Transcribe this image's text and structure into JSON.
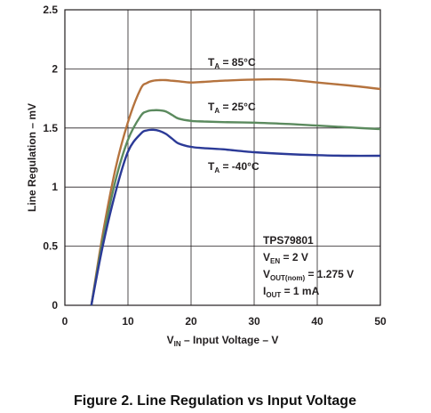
{
  "chart_data": {
    "type": "line",
    "caption": "Figure 2. Line Regulation vs Input Voltage",
    "xlabel": {
      "main": "V",
      "sub": "IN",
      "rest": " – Input Voltage – V"
    },
    "ylabel": "Line Regulation – mV",
    "xlim": [
      0,
      50
    ],
    "ylim": [
      0,
      2.5
    ],
    "xticks": [
      "0",
      "10",
      "20",
      "30",
      "40",
      "50"
    ],
    "yticks": [
      "0",
      "0.5",
      "1",
      "1.5",
      "2",
      "2.5"
    ],
    "grid": true,
    "series": [
      {
        "name": "T_A = 85°C",
        "label": {
          "main": "T",
          "sub": "A",
          "rest": " = 85°C"
        },
        "color": "#b5733e",
        "x": [
          4.2,
          6,
          8,
          10,
          12,
          13,
          14,
          15,
          16,
          17,
          18,
          20,
          22,
          25,
          30,
          35,
          40,
          45,
          50
        ],
        "y": [
          0.0,
          0.6,
          1.15,
          1.55,
          1.83,
          1.88,
          1.9,
          1.905,
          1.905,
          1.9,
          1.895,
          1.885,
          1.89,
          1.9,
          1.91,
          1.91,
          1.885,
          1.86,
          1.83
        ]
      },
      {
        "name": "T_A = 25°C",
        "label": {
          "main": "T",
          "sub": "A",
          "rest": " = 25°C"
        },
        "color": "#5b8a5e",
        "x": [
          4.2,
          6,
          8,
          10,
          12,
          13,
          14,
          15,
          16,
          17,
          18,
          20,
          22,
          25,
          30,
          35,
          40,
          45,
          50
        ],
        "y": [
          0.0,
          0.55,
          1.05,
          1.4,
          1.6,
          1.64,
          1.65,
          1.65,
          1.64,
          1.61,
          1.58,
          1.56,
          1.555,
          1.55,
          1.545,
          1.535,
          1.52,
          1.505,
          1.49
        ]
      },
      {
        "name": "T_A = -40°C",
        "label": {
          "main": "T",
          "sub": "A",
          "rest": " = -40°C"
        },
        "color": "#2b3a97",
        "x": [
          4.2,
          6,
          8,
          10,
          12,
          13,
          14,
          15,
          16,
          17,
          18,
          20,
          22,
          25,
          30,
          35,
          40,
          45,
          50
        ],
        "y": [
          0.0,
          0.5,
          0.95,
          1.3,
          1.45,
          1.48,
          1.485,
          1.475,
          1.45,
          1.41,
          1.37,
          1.34,
          1.33,
          1.32,
          1.295,
          1.28,
          1.27,
          1.265,
          1.265
        ]
      }
    ],
    "annotation": [
      {
        "main": "TPS79801",
        "sub": "",
        "rest": ""
      },
      {
        "main": "V",
        "sub": "EN",
        "rest": " = 2 V"
      },
      {
        "main": "V",
        "sub": "OUT(nom)",
        "rest": " = 1.275 V"
      },
      {
        "main": "I",
        "sub": "OUT",
        "rest": " = 1 mA"
      }
    ]
  }
}
